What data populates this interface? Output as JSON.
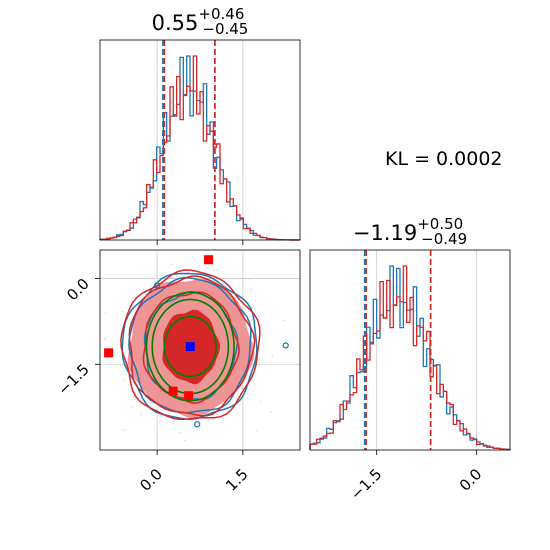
{
  "chart_data": {
    "type": "corner",
    "kl_annotation": "KL = 0.0002",
    "colors": {
      "series_a": "#1f77b4",
      "series_b": "#d62728",
      "contour_green": "#008000",
      "truth_marker": "#0000ff",
      "extra_markers": "#ff0000",
      "filled_light": "#f09595",
      "filled_dark": "#d62728"
    },
    "params": [
      {
        "title_median": "0.55",
        "title_plus": "+0.46",
        "title_minus": "−0.45",
        "median": 0.55,
        "plus": 0.46,
        "minus": 0.45,
        "quantile_lines": [
          0.1,
          1.01
        ],
        "xlim": [
          -1.0,
          2.5
        ],
        "grid_x": [
          0.0,
          1.5
        ]
      },
      {
        "title_median": "−1.19",
        "title_plus": "+0.50",
        "title_minus": "−0.49",
        "median": -1.19,
        "plus": 0.5,
        "minus": 0.49,
        "quantile_lines": [
          -1.68,
          -0.69
        ],
        "xlim": [
          -2.5,
          0.5
        ],
        "grid_x": [
          -1.5,
          0.0
        ]
      }
    ],
    "joint": {
      "xlim": [
        -1.0,
        2.5
      ],
      "ylim": [
        -3.0,
        0.5
      ],
      "grid_x": [
        0.0,
        1.5
      ],
      "grid_y": [
        0.0,
        -1.5
      ],
      "truth_point": [
        0.58,
        -1.19
      ],
      "extra_points": [
        [
          0.9,
          0.33
        ],
        [
          -0.85,
          -1.3
        ],
        [
          0.28,
          -1.97
        ],
        [
          0.55,
          -2.05
        ]
      ],
      "contour_radii_x": [
        0.43,
        0.82,
        1.08,
        1.2
      ],
      "contour_radii_y": [
        0.55,
        0.95,
        1.2,
        1.3
      ],
      "gaussian_center": [
        0.58,
        -1.19
      ],
      "gaussian_sigma": [
        0.45,
        0.5
      ],
      "isolated_points": [
        [
          2.25,
          -1.17
        ],
        [
          0.7,
          -2.55
        ],
        [
          0.0,
          -0.12
        ]
      ]
    },
    "tick_labels": {
      "bottom_left": [
        "0.0",
        "1.5"
      ],
      "bottom_right": [
        "−1.5",
        "0.0"
      ],
      "left_y": [
        "0.0",
        "−1.5"
      ]
    }
  }
}
